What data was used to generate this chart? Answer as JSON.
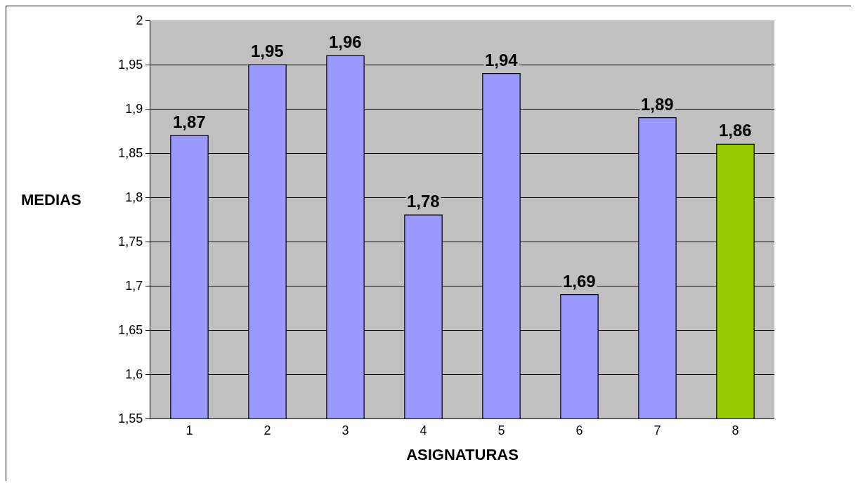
{
  "chart_data": {
    "type": "bar",
    "xlabel": "ASIGNATURAS",
    "ylabel": "MEDIAS",
    "categories": [
      "1",
      "2",
      "3",
      "4",
      "5",
      "6",
      "7",
      "8"
    ],
    "values": [
      1.87,
      1.95,
      1.96,
      1.78,
      1.94,
      1.69,
      1.89,
      1.86
    ],
    "colors": [
      "#9999ff",
      "#9999ff",
      "#9999ff",
      "#9999ff",
      "#9999ff",
      "#9999ff",
      "#9999ff",
      "#99cc00"
    ],
    "value_labels": [
      "1,87",
      "1,95",
      "1,96",
      "1,78",
      "1,94",
      "1,69",
      "1,89",
      "1,86"
    ],
    "ylim": [
      1.55,
      2
    ],
    "yticks": [
      {
        "value": 1.55,
        "label": "1,55"
      },
      {
        "value": 1.6,
        "label": "1,6"
      },
      {
        "value": 1.65,
        "label": "1,65"
      },
      {
        "value": 1.7,
        "label": "1,7"
      },
      {
        "value": 1.75,
        "label": "1,75"
      },
      {
        "value": 1.8,
        "label": "1,8"
      },
      {
        "value": 1.85,
        "label": "1,85"
      },
      {
        "value": 1.9,
        "label": "1,9"
      },
      {
        "value": 1.95,
        "label": "1,95"
      },
      2
    ],
    "grid": "y"
  }
}
